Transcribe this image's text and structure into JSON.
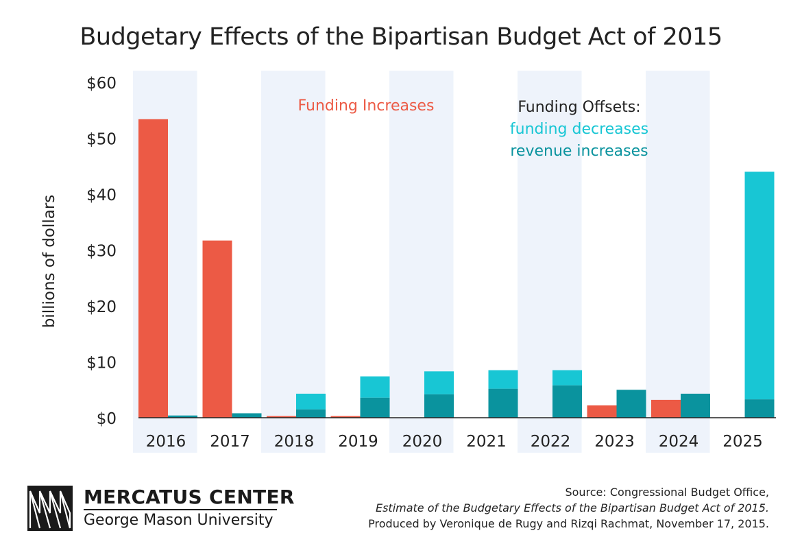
{
  "chart_data": {
    "type": "bar",
    "title": "Budgetary Effects of the Bipartisan Budget Act of 2015",
    "ylabel": "billions of dollars",
    "ylim": [
      0,
      60
    ],
    "yticks": [
      "$0",
      "$10",
      "$20",
      "$30",
      "$40",
      "$50",
      "$60"
    ],
    "ytick_values": [
      0,
      10,
      20,
      30,
      40,
      50,
      60
    ],
    "categories": [
      "2016",
      "2017",
      "2018",
      "2019",
      "2020",
      "2021",
      "2022",
      "2023",
      "2024",
      "2025"
    ],
    "series": [
      {
        "name": "Funding Increases",
        "group": "increases",
        "color": "#ec5a45",
        "values": [
          53.4,
          31.7,
          0.3,
          0.3,
          0,
          0,
          0,
          2.2,
          3.2,
          0
        ]
      },
      {
        "name": "revenue increases",
        "group": "offsets",
        "color": "#0a939e",
        "values": [
          0.4,
          0.8,
          1.5,
          3.6,
          4.2,
          5.2,
          5.8,
          5.0,
          4.3,
          3.3
        ]
      },
      {
        "name": "funding decreases",
        "group": "offsets",
        "color": "#18c6d4",
        "values": [
          0,
          0,
          2.8,
          3.8,
          4.1,
          3.3,
          2.7,
          0,
          0,
          40.7
        ]
      }
    ],
    "legend": {
      "increases_label": "Funding Increases",
      "offsets_heading": "Funding Offsets:",
      "decreases_label": "funding decreases",
      "revenue_label": "revenue increases"
    },
    "colors": {
      "increase": "#ec5a45",
      "decrease": "#18c6d4",
      "revenue": "#0a939e",
      "band": "#eef3fb",
      "axis": "#222222"
    },
    "grid": false
  },
  "logo": {
    "name": "MERCATUS CENTER",
    "subtitle": "George Mason University"
  },
  "source": {
    "line1": "Source: Congressional Budget Office,",
    "line2": "Estimate of the Budgetary Effects of the Bipartisan Budget Act of 2015.",
    "line3": "Produced by Veronique de Rugy and Rizqi Rachmat, November 17, 2015."
  }
}
